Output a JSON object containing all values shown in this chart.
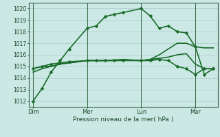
{
  "bg_color": "#cce8e4",
  "grid_color": "#aacccc",
  "line_color": "#1a6b2a",
  "xlabel": "Pression niveau de la mer( hPa )",
  "ylim": [
    1011.5,
    1020.5
  ],
  "yticks": [
    1012,
    1013,
    1014,
    1015,
    1016,
    1017,
    1018,
    1019,
    1020
  ],
  "xtick_labels": [
    "Dim",
    "Mer",
    "Lun",
    "Mar"
  ],
  "xtick_positions": [
    0,
    12,
    24,
    36
  ],
  "series": [
    {
      "x": [
        0,
        2,
        4,
        6,
        8,
        12,
        14,
        16,
        18,
        20,
        24,
        26,
        28,
        30,
        32,
        34,
        36,
        38,
        40
      ],
      "y": [
        1012.0,
        1013.1,
        1014.5,
        1015.5,
        1016.5,
        1018.3,
        1018.5,
        1019.3,
        1019.5,
        1019.65,
        1020.0,
        1019.35,
        1018.3,
        1018.5,
        1018.0,
        1017.9,
        1016.7,
        1014.3,
        1014.8
      ],
      "marker": "D",
      "lw": 1.2,
      "ms": 2.5,
      "has_marker": true
    },
    {
      "x": [
        0,
        2,
        4,
        6,
        8,
        12,
        14,
        16,
        18,
        20,
        24,
        26,
        28,
        30,
        32,
        34,
        36,
        38,
        40
      ],
      "y": [
        1014.5,
        1014.8,
        1015.0,
        1015.2,
        1015.3,
        1015.5,
        1015.5,
        1015.5,
        1015.5,
        1015.55,
        1015.5,
        1015.6,
        1016.0,
        1016.5,
        1017.0,
        1017.0,
        1016.7,
        1016.6,
        1016.6
      ],
      "marker": null,
      "lw": 1.2,
      "ms": 0,
      "has_marker": false
    },
    {
      "x": [
        0,
        2,
        4,
        6,
        8,
        12,
        14,
        16,
        18,
        20,
        24,
        26,
        28,
        30,
        32,
        34,
        36,
        38,
        40
      ],
      "y": [
        1014.8,
        1015.0,
        1015.0,
        1015.2,
        1015.3,
        1015.5,
        1015.5,
        1015.5,
        1015.55,
        1015.6,
        1015.5,
        1015.6,
        1015.7,
        1015.8,
        1016.0,
        1016.1,
        1015.2,
        1014.8,
        1014.8
      ],
      "marker": null,
      "lw": 1.2,
      "ms": 0,
      "has_marker": false
    },
    {
      "x": [
        0,
        2,
        4,
        6,
        8,
        12,
        14,
        16,
        18,
        20,
        24,
        26,
        28,
        30,
        32,
        34,
        36,
        38,
        40
      ],
      "y": [
        1014.8,
        1015.0,
        1015.2,
        1015.3,
        1015.4,
        1015.5,
        1015.5,
        1015.5,
        1015.5,
        1015.5,
        1015.5,
        1015.5,
        1015.6,
        1015.5,
        1015.0,
        1014.8,
        1014.3,
        1014.8,
        1014.8
      ],
      "marker": "D",
      "lw": 1.2,
      "ms": 2.5,
      "has_marker": true
    }
  ],
  "vlines": [
    0,
    12,
    24,
    36
  ],
  "xlim": [
    -1,
    41
  ]
}
